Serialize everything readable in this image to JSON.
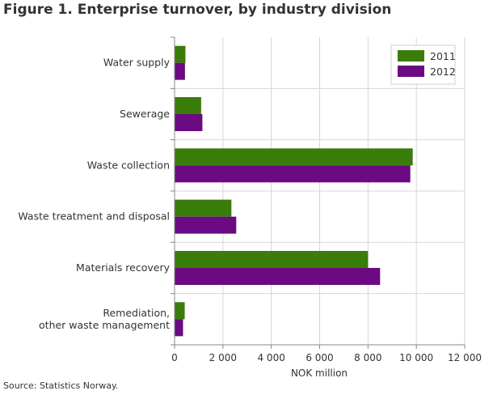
{
  "chart_data": {
    "type": "bar",
    "orientation": "horizontal",
    "title": "Figure 1. Enterprise turnover, by industry division",
    "xlabel": "NOK million",
    "source": "Source: Statistics Norway.",
    "categories": [
      [
        "Water supply"
      ],
      [
        "Sewerage"
      ],
      [
        "Waste collection"
      ],
      [
        "Waste treatment and disposal"
      ],
      [
        "Materials recovery"
      ],
      [
        "Remediation,",
        "other waste management"
      ]
    ],
    "series": [
      {
        "name": "2011",
        "color": "#3a7d0a",
        "values": [
          450,
          1100,
          9850,
          2350,
          8000,
          420
        ]
      },
      {
        "name": "2012",
        "color": "#6b0a82",
        "values": [
          430,
          1150,
          9750,
          2550,
          8500,
          350
        ]
      }
    ],
    "xlim": [
      0,
      12000
    ],
    "xticks": [
      0,
      2000,
      4000,
      6000,
      8000,
      10000,
      12000
    ],
    "xtick_labels": [
      "0",
      "2 000",
      "4 000",
      "6 000",
      "8 000",
      "10 000",
      "12 000"
    ],
    "grid": true,
    "legend_position": "top-right"
  }
}
